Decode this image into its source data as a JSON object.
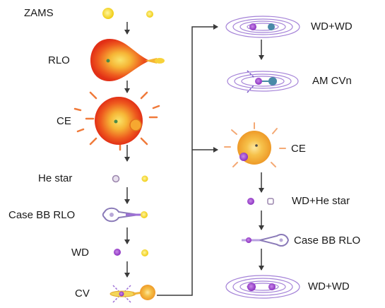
{
  "labels": {
    "zams": "ZAMS",
    "rlo": "RLO",
    "ce_left": "CE",
    "he_star": "He star",
    "case_bb_rlo_left": "Case BB RLO",
    "wd": "WD",
    "cv": "CV",
    "wd_wd_top": "WD+WD",
    "am_cvn": "AM CVn",
    "ce_right": "CE",
    "wd_he_star": "WD+He star",
    "case_bb_rlo_right": "Case BB RLO",
    "wd_wd_bottom": "WD+WD"
  },
  "colors": {
    "yellow_star": "#f2d21a",
    "giant_outer": "#e8361c",
    "giant_mid": "#f48a1c",
    "giant_core": "#f7c640",
    "white_dwarf": "#9b3fc8",
    "he_star": "#b9a3c8",
    "orbit": "#9d6fd6",
    "arrow": "#3a3a3a",
    "ray": "#f07a3a",
    "ce_right_body": "#f0a830"
  }
}
